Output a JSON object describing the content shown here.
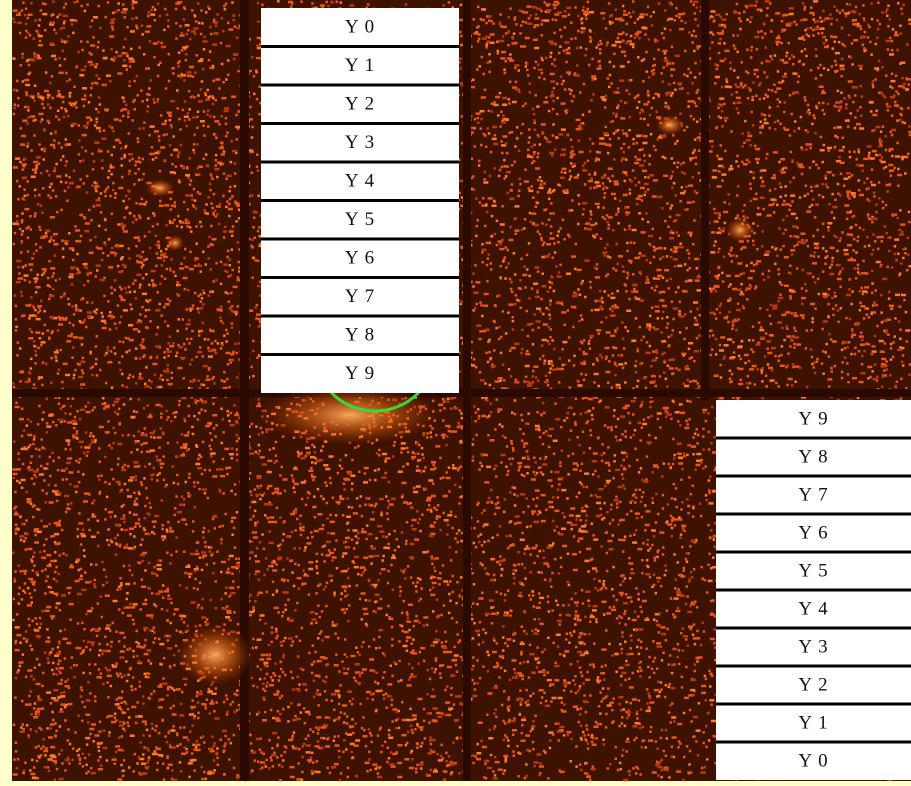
{
  "top_labels": [
    "Y 0",
    "Y 1",
    "Y 2",
    "Y 3",
    "Y 4",
    "Y 5",
    "Y 6",
    "Y 7",
    "Y 8",
    "Y 9"
  ],
  "right_labels": [
    "Y 9",
    "Y 8",
    "Y 7",
    "Y 6",
    "Y 5",
    "Y 4",
    "Y 3",
    "Y 2",
    "Y 1",
    "Y 0"
  ]
}
